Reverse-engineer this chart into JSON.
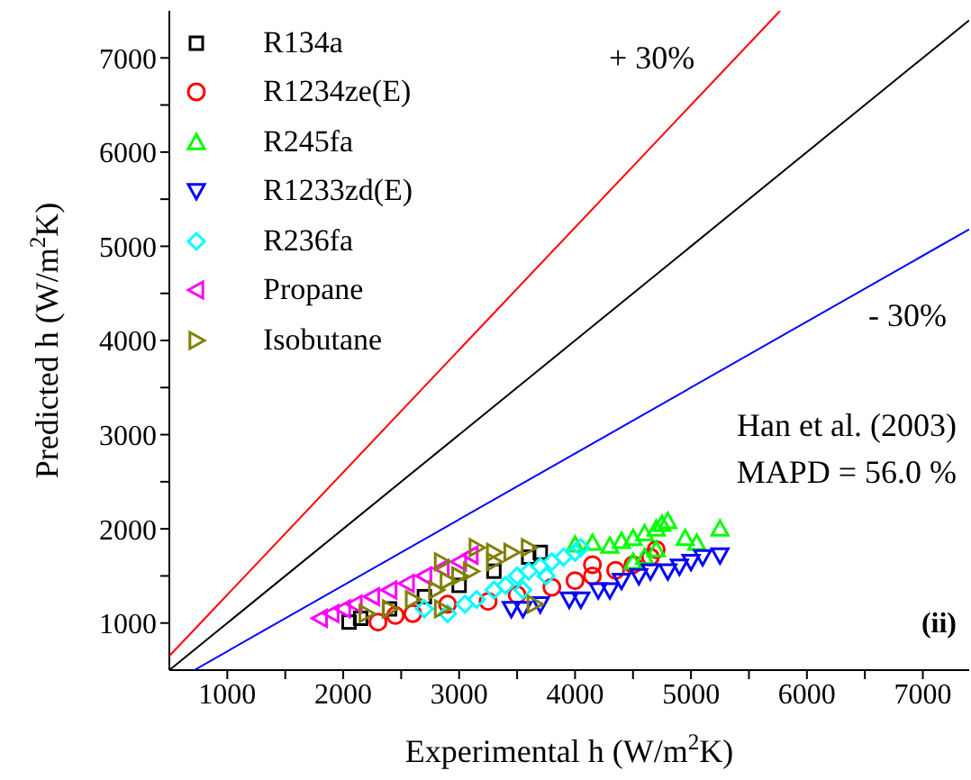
{
  "chart_data": {
    "type": "scatter",
    "xlabel": "Experimental h (W/m$^{2}$K)",
    "ylabel": "Predicted h (W/m$^{2}$K)",
    "xlim": [
      500,
      7400
    ],
    "ylim": [
      500,
      7500
    ],
    "xticks": [
      1000,
      {
        "value": 1500,
        "label": null
      },
      2000,
      {
        "value": 2500,
        "label": null
      },
      3000,
      {
        "value": 3500,
        "label": null
      },
      4000,
      {
        "value": 4500,
        "label": null
      },
      5000,
      {
        "value": 5500,
        "label": null
      },
      6000,
      {
        "value": 6500,
        "label": null
      },
      7000
    ],
    "yticks": [
      1000,
      {
        "value": 1500,
        "label": null
      },
      2000,
      {
        "value": 2500,
        "label": null
      },
      3000,
      {
        "value": 3500,
        "label": null
      },
      4000,
      {
        "value": 4500,
        "label": null
      },
      5000,
      {
        "value": 5500,
        "label": null
      },
      6000,
      {
        "value": 6500,
        "label": null
      },
      7000
    ],
    "grid": false,
    "legend": "top left",
    "annotations": [
      "+ 30%",
      "- 30%",
      "Han et al. (2003)",
      "MAPD = 56.0 %",
      "(ii)"
    ],
    "series": [
      {
        "type": "line",
        "color": "#ff0000",
        "marker": "none",
        "x": [
          500,
          5769
        ],
        "values": [
          650,
          7500
        ]
      },
      {
        "type": "line",
        "color": "#000000",
        "marker": "none",
        "x": [
          500,
          7400
        ],
        "values": [
          500,
          7400
        ]
      },
      {
        "type": "line",
        "color": "#0000ff",
        "marker": "none",
        "x": [
          715,
          7400
        ],
        "values": [
          500,
          5180
        ]
      },
      {
        "name": "R134a",
        "color": "#000000",
        "marker": "square",
        "x": [
          2050,
          2150,
          2400,
          2700,
          3000,
          3300,
          3600,
          3700
        ],
        "values": [
          1010,
          1050,
          1150,
          1280,
          1400,
          1550,
          1700,
          1750
        ]
      },
      {
        "name": "R1234ze(E)",
        "color": "#ff0000",
        "marker": "circle",
        "x": [
          2300,
          2450,
          2600,
          2900,
          3250,
          3500,
          3800,
          4000,
          4150,
          4150,
          4350,
          4500,
          4650,
          4700
        ],
        "values": [
          1010,
          1080,
          1100,
          1200,
          1230,
          1300,
          1380,
          1450,
          1500,
          1620,
          1560,
          1620,
          1700,
          1780
        ]
      },
      {
        "name": "R245fa",
        "color": "#00ff00",
        "marker": "triangle",
        "x": [
          4000,
          4150,
          4300,
          4400,
          4500,
          4600,
          4700,
          4750,
          4800,
          4950,
          5050,
          5250,
          4500,
          4600,
          4700
        ],
        "values": [
          1830,
          1850,
          1820,
          1870,
          1900,
          1950,
          2000,
          2050,
          2080,
          1900,
          1850,
          2000,
          1650,
          1700,
          1780
        ]
      },
      {
        "name": "R1233zd(E)",
        "color": "#0000ff",
        "marker": "triangle-down",
        "x": [
          3450,
          3550,
          3700,
          3950,
          4050,
          4200,
          4300,
          4400,
          4550,
          4650,
          4800,
          4900,
          5000,
          5100,
          5250
        ],
        "values": [
          1150,
          1150,
          1200,
          1250,
          1250,
          1350,
          1350,
          1450,
          1500,
          1550,
          1550,
          1600,
          1650,
          1700,
          1720
        ]
      },
      {
        "name": "R236fa",
        "color": "#00ffff",
        "marker": "diamond",
        "x": [
          2700,
          2900,
          3050,
          3150,
          3300,
          3400,
          3500,
          3600,
          3700,
          3800,
          3900,
          4000,
          4050,
          3550,
          3750
        ],
        "values": [
          1150,
          1100,
          1200,
          1250,
          1350,
          1400,
          1500,
          1550,
          1600,
          1650,
          1700,
          1750,
          1800,
          1350,
          1500
        ]
      },
      {
        "name": "Propane",
        "color": "#ff00ff",
        "marker": "triangle-left",
        "x": [
          1800,
          1900,
          2000,
          2100,
          2250,
          2400,
          2550,
          2700,
          2850,
          3000,
          3100
        ],
        "values": [
          1050,
          1100,
          1150,
          1200,
          1280,
          1350,
          1420,
          1500,
          1580,
          1650,
          1720
        ]
      },
      {
        "name": "Isobutane",
        "color": "#808000",
        "marker": "triangle-right",
        "x": [
          2200,
          2400,
          2600,
          2800,
          2900,
          3000,
          3150,
          3300,
          3450,
          3600,
          3100,
          3300,
          2850,
          3650,
          2850
        ],
        "values": [
          1100,
          1150,
          1250,
          1350,
          1450,
          1500,
          1800,
          1750,
          1750,
          1800,
          1550,
          1650,
          1650,
          1200,
          1150
        ]
      }
    ]
  }
}
